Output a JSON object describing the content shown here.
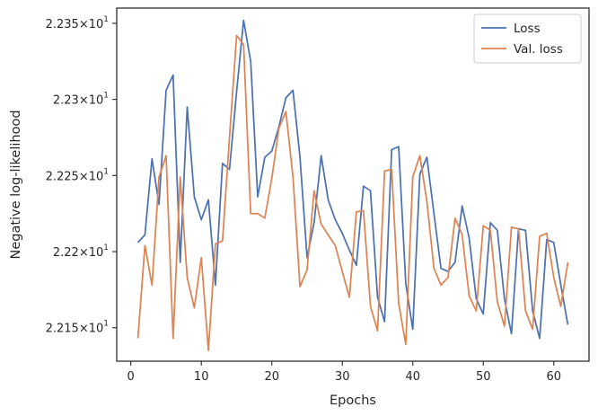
{
  "chart_data": {
    "type": "line",
    "xlabel": "Epochs",
    "ylabel": "Negative log-likelihood",
    "xlim": [
      -2,
      65
    ],
    "ylim": [
      22.128,
      22.36
    ],
    "x_ticks": [
      0,
      10,
      20,
      30,
      40,
      50,
      60
    ],
    "y_ticks": [
      {
        "value": 22.15,
        "mant": "2.215",
        "sup": "1"
      },
      {
        "value": 22.2,
        "mant": "2.22",
        "sup": "1"
      },
      {
        "value": 22.25,
        "mant": "2.225",
        "sup": "1"
      },
      {
        "value": 22.3,
        "mant": "2.23",
        "sup": "1"
      },
      {
        "value": 22.35,
        "mant": "2.235",
        "sup": "1"
      }
    ],
    "grid": false,
    "legend": "top-right",
    "x": [
      1,
      2,
      3,
      4,
      5,
      6,
      7,
      8,
      9,
      10,
      11,
      12,
      13,
      14,
      15,
      16,
      17,
      18,
      19,
      20,
      21,
      22,
      23,
      24,
      25,
      26,
      27,
      28,
      29,
      30,
      31,
      32,
      33,
      34,
      35,
      36,
      37,
      38,
      39,
      40,
      41,
      42,
      43,
      44,
      45,
      46,
      47,
      48,
      49,
      50,
      51,
      52,
      53,
      54,
      55,
      56,
      57,
      58,
      59,
      60,
      61,
      62
    ],
    "series": [
      {
        "name": "Loss",
        "color": "#4c72b0",
        "values": [
          22.206,
          22.211,
          22.261,
          22.231,
          22.306,
          22.316,
          22.193,
          22.295,
          22.236,
          22.221,
          22.234,
          22.178,
          22.258,
          22.254,
          22.305,
          22.352,
          22.325,
          22.236,
          22.262,
          22.266,
          22.282,
          22.301,
          22.306,
          22.262,
          22.196,
          22.219,
          22.263,
          22.234,
          22.221,
          22.212,
          22.201,
          22.191,
          22.243,
          22.24,
          22.17,
          22.154,
          22.267,
          22.269,
          22.179,
          22.149,
          22.251,
          22.262,
          22.225,
          22.189,
          22.187,
          22.193,
          22.23,
          22.209,
          22.169,
          22.159,
          22.219,
          22.214,
          22.169,
          22.146,
          22.215,
          22.214,
          22.161,
          22.143,
          22.208,
          22.206,
          22.178,
          22.152
        ]
      },
      {
        "name": "Val. loss",
        "color": "#dd8452",
        "values": [
          22.143,
          22.204,
          22.178,
          22.249,
          22.263,
          22.143,
          22.249,
          22.183,
          22.163,
          22.196,
          22.135,
          22.205,
          22.207,
          22.275,
          22.342,
          22.336,
          22.225,
          22.225,
          22.222,
          22.248,
          22.281,
          22.292,
          22.249,
          22.177,
          22.188,
          22.24,
          22.218,
          22.211,
          22.204,
          22.187,
          22.17,
          22.226,
          22.227,
          22.164,
          22.148,
          22.253,
          22.254,
          22.166,
          22.139,
          22.249,
          22.263,
          22.233,
          22.189,
          22.178,
          22.183,
          22.222,
          22.211,
          22.171,
          22.161,
          22.217,
          22.214,
          22.167,
          22.151,
          22.216,
          22.215,
          22.161,
          22.149,
          22.21,
          22.212,
          22.183,
          22.164,
          22.193
        ]
      }
    ]
  }
}
